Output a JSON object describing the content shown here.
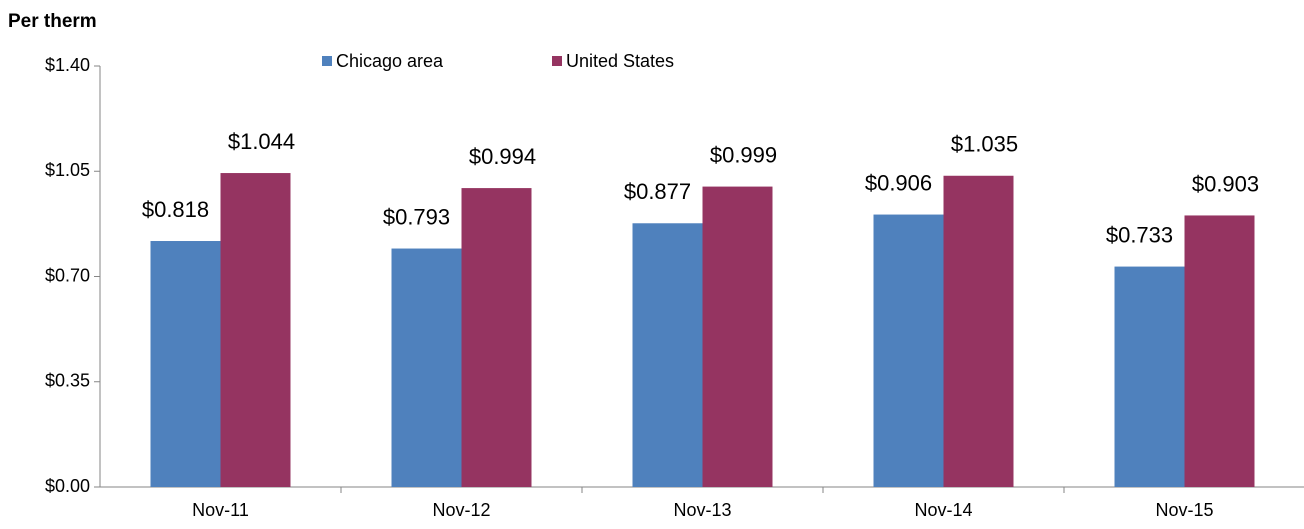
{
  "chart_data": {
    "type": "bar",
    "y_axis_label": "Per therm",
    "categories": [
      "Nov-11",
      "Nov-12",
      "Nov-13",
      "Nov-14",
      "Nov-15"
    ],
    "series": [
      {
        "name": "Chicago area",
        "color": "#4f81bd",
        "values": [
          0.818,
          0.793,
          0.877,
          0.906,
          0.733
        ],
        "value_labels": [
          "$0.818",
          "$0.793",
          "$0.877",
          "$0.906",
          "$0.733"
        ]
      },
      {
        "name": "United States",
        "color": "#953461",
        "values": [
          1.044,
          0.994,
          0.999,
          1.035,
          0.903
        ],
        "value_labels": [
          "$1.044",
          "$0.994",
          "$0.999",
          "$1.035",
          "$0.903"
        ]
      }
    ],
    "ylim": [
      0,
      1.4
    ],
    "yticks": [
      {
        "value": 0,
        "label": "$0.00"
      },
      {
        "value": 0.35,
        "label": "$0.35"
      },
      {
        "value": 0.7,
        "label": "$0.70"
      },
      {
        "value": 1.05,
        "label": "$1.05"
      },
      {
        "value": 1.4,
        "label": "$1.40"
      }
    ],
    "legend": "top"
  }
}
